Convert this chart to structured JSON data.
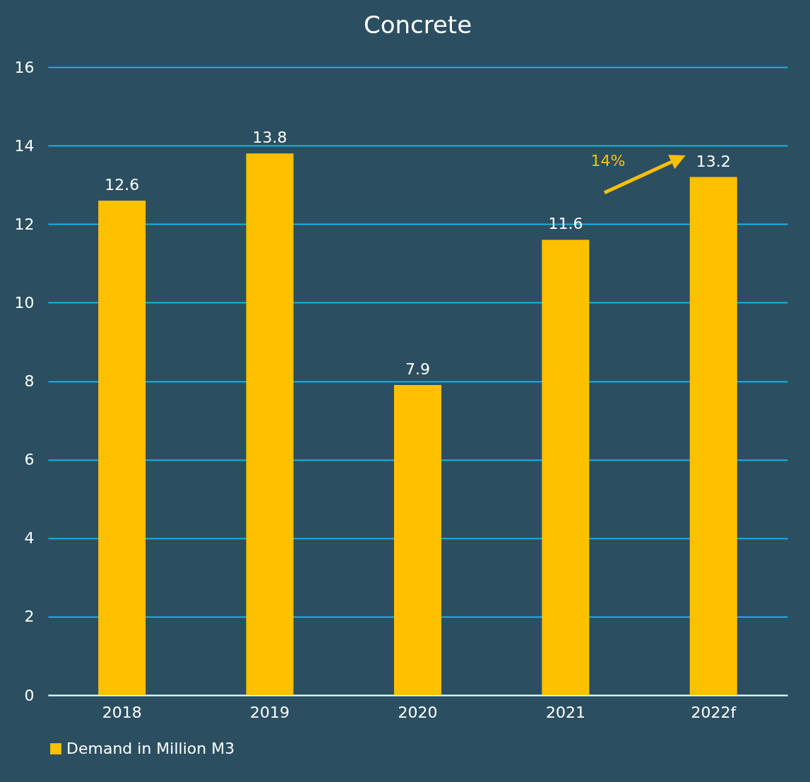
{
  "chart_data": {
    "type": "bar",
    "title": "Concrete",
    "categories": [
      "2018",
      "2019",
      "2020",
      "2021",
      "2022f"
    ],
    "series": [
      {
        "name": "Demand in Million M3",
        "color": "#ffc000",
        "values": [
          12.6,
          13.8,
          7.9,
          11.6,
          13.2
        ]
      }
    ],
    "ylim": [
      0,
      16
    ],
    "yticks": [
      0,
      2,
      4,
      6,
      8,
      10,
      12,
      14,
      16
    ],
    "grid": "y",
    "legend": "bottom",
    "data_labels": true,
    "annotations": [
      "14%"
    ]
  }
}
